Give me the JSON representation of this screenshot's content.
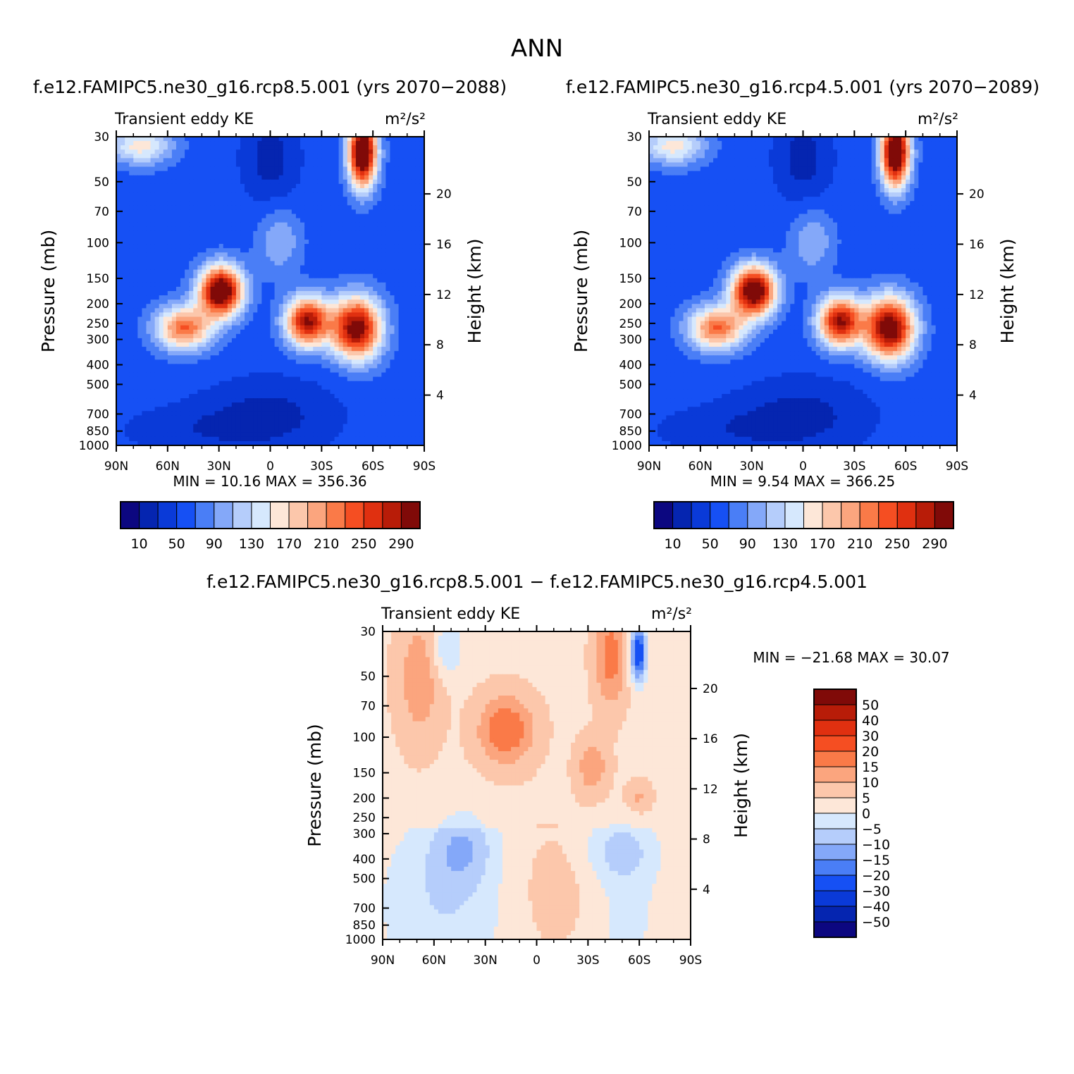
{
  "figure_title": "ANN",
  "chart_data": [
    {
      "type": "heatmap",
      "title": "f.e12.FAMIPC5.ne30_g16.rcp8.5.001 (yrs 2070-2088)",
      "left_label": "Transient eddy KE",
      "right_label": "m²/s²",
      "xlabel": "",
      "ylabel": "Pressure (mb)",
      "y2label": "Height (km)",
      "x_ticks": [
        "90N",
        "60N",
        "30N",
        "0",
        "30S",
        "60S",
        "90S"
      ],
      "y_ticks": [
        "30",
        "50",
        "70",
        "100",
        "150",
        "200",
        "250",
        "300",
        "400",
        "500",
        "700",
        "850",
        "1000"
      ],
      "y2_ticks": [
        "20",
        "16",
        "12",
        "8",
        "4"
      ],
      "stats": "MIN =   10.16   MAX = 356.36",
      "colorbar_labels": [
        "10",
        "50",
        "90",
        "130",
        "170",
        "210",
        "250",
        "290"
      ],
      "levels": [
        10,
        30,
        50,
        70,
        90,
        110,
        130,
        150,
        170,
        190,
        210,
        230,
        250,
        270,
        290
      ],
      "colors": [
        "#0c0780",
        "#0525b0",
        "#0a3ad8",
        "#1650f4",
        "#4a7ef6",
        "#84a8f9",
        "#b5cdfb",
        "#d6e8fd",
        "#fde7d8",
        "#fcc7ab",
        "#fba57e",
        "#fa7a48",
        "#f54e22",
        "#e03010",
        "#b81c08",
        "#800a08"
      ]
    },
    {
      "type": "heatmap",
      "title": "f.e12.FAMIPC5.ne30_g16.rcp4.5.001 (yrs 2070-2089)",
      "left_label": "Transient eddy KE",
      "right_label": "m²/s²",
      "xlabel": "",
      "ylabel": "Pressure (mb)",
      "y2label": "Height (km)",
      "x_ticks": [
        "90N",
        "60N",
        "30N",
        "0",
        "30S",
        "60S",
        "90S"
      ],
      "y_ticks": [
        "30",
        "50",
        "70",
        "100",
        "150",
        "200",
        "250",
        "300",
        "400",
        "500",
        "700",
        "850",
        "1000"
      ],
      "y2_ticks": [
        "20",
        "16",
        "12",
        "8",
        "4"
      ],
      "stats": "MIN =    9.54   MAX = 366.25",
      "colorbar_labels": [
        "10",
        "50",
        "90",
        "130",
        "170",
        "210",
        "250",
        "290"
      ],
      "levels": [
        10,
        30,
        50,
        70,
        90,
        110,
        130,
        150,
        170,
        190,
        210,
        230,
        250,
        270,
        290
      ],
      "colors": [
        "#0c0780",
        "#0525b0",
        "#0a3ad8",
        "#1650f4",
        "#4a7ef6",
        "#84a8f9",
        "#b5cdfb",
        "#d6e8fd",
        "#fde7d8",
        "#fcc7ab",
        "#fba57e",
        "#fa7a48",
        "#f54e22",
        "#e03010",
        "#b81c08",
        "#800a08"
      ]
    },
    {
      "type": "heatmap",
      "title": "f.e12.FAMIPC5.ne30_g16.rcp8.5.001 - f.e12.FAMIPC5.ne30_g16.rcp4.5.001",
      "left_label": "Transient eddy KE",
      "right_label": "m²/s²",
      "xlabel": "",
      "ylabel": "Pressure (mb)",
      "y2label": "Height (km)",
      "x_ticks": [
        "90N",
        "60N",
        "30N",
        "0",
        "30S",
        "60S",
        "90S"
      ],
      "y_ticks": [
        "30",
        "50",
        "70",
        "100",
        "150",
        "200",
        "250",
        "300",
        "400",
        "500",
        "700",
        "850",
        "1000"
      ],
      "y2_ticks": [
        "20",
        "16",
        "12",
        "8",
        "4"
      ],
      "stats": "MIN = -21.68   MAX =   30.07",
      "colorbar_labels": [
        "50",
        "40",
        "30",
        "20",
        "15",
        "10",
        "5",
        "0",
        "-5",
        "-10",
        "-15",
        "-20",
        "-30",
        "-40",
        "-50"
      ],
      "levels": [
        -50,
        -40,
        -30,
        -20,
        -15,
        -10,
        -5,
        0,
        5,
        10,
        15,
        20,
        30,
        40,
        50
      ],
      "colors": [
        "#0c0780",
        "#0525b0",
        "#0a3ad8",
        "#1650f4",
        "#4a7ef6",
        "#84a8f9",
        "#b5cdfb",
        "#d6e8fd",
        "#fde7d8",
        "#fcc7ab",
        "#fba57e",
        "#fa7a48",
        "#f54e22",
        "#e03010",
        "#b81c08",
        "#800a08"
      ]
    }
  ]
}
